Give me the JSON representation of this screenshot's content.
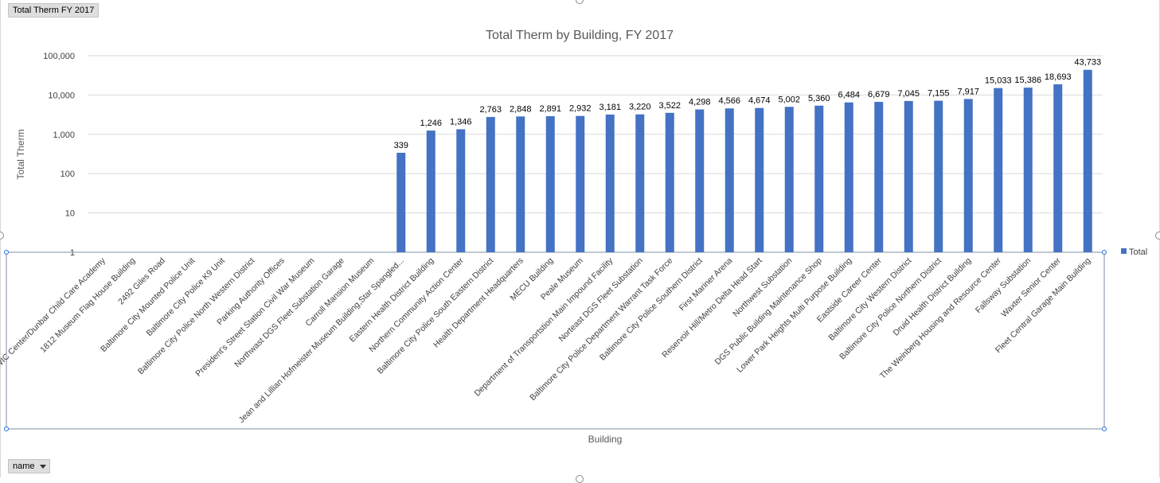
{
  "pivot": {
    "filter_field": "Total Therm FY 2017",
    "axis_field": "name"
  },
  "colors": {
    "bar": "#4472c4",
    "grid": "#d9d9d9",
    "text": "#404040"
  },
  "chart_data": {
    "type": "bar",
    "title": "Total Therm by Building, FY 2017",
    "xlabel": "Building",
    "ylabel": "Total Therm",
    "yscale": "log",
    "ylim": [
      1,
      100000
    ],
    "yticks": [
      1,
      10,
      100,
      1000,
      10000,
      100000
    ],
    "ytick_labels": [
      "1",
      "10",
      "100",
      "1,000",
      "10,000",
      "100,000"
    ],
    "legend": "right",
    "grid": true,
    "categories": [
      "WIC Center/Dunbar Child Care Academy",
      "1812 Museum Flag House Building",
      "2492 Giles Road",
      "Baltimore City Mounted Police Unit",
      "Baltimore City Police K9 Unit",
      "Baltimore City Police North Western District",
      "Parking Authority Offices",
      "President's Street Station Civil War Museum",
      "Northwast DGS Fleet Substation Garage",
      "Carroll Mansion Museum",
      "Jean and Lillian Hofmeister Museum Building,Star Spangled...",
      "Eastern Health District Building",
      "Northern Community Action Center",
      "Baltimore City Police South Eastern District",
      "Health Department Headquarters",
      "MECU Building",
      "Peale Museum",
      "Department of Transportstion Main Impound Facility",
      "Norteast DGS Fleet Substation",
      "Baltimore City Police Department Warrant Task Force",
      "Baltimore City Police Southern District",
      "First Mariner Arena",
      "Reservoir Hill/Metro Delta Head Start",
      "Northwest Substation",
      "DGS Public Building Maintenance Shop",
      "Lower Park Heights Multi Purpose Building",
      "Eastside Career Center",
      "Baltimore City Western District",
      "Baltimore City Police Northern District",
      "Druid Health District Building",
      "The Weinberg Housing and Resource Center",
      "Fallsway Substation",
      "Waxter Senior Center",
      "Fleet Central Garage Main Building"
    ],
    "series": [
      {
        "name": "Total",
        "values": [
          null,
          null,
          null,
          null,
          null,
          null,
          null,
          null,
          null,
          null,
          339,
          1246,
          1346,
          2763,
          2848,
          2891,
          2932,
          3181,
          3220,
          3522,
          4298,
          4566,
          4674,
          5002,
          5360,
          6484,
          6679,
          7045,
          7155,
          7917,
          15033,
          15386,
          18693,
          43733
        ],
        "labels": [
          "",
          "",
          "",
          "",
          "",
          "",
          "",
          "",
          "",
          "",
          "339",
          "1,246",
          "1,346",
          "2,763",
          "2,848",
          "2,891",
          "2,932",
          "3,181",
          "3,220",
          "3,522",
          "4,298",
          "4,566",
          "4,674",
          "5,002",
          "5,360",
          "6,484",
          "6,679",
          "7,045",
          "7,155",
          "7,917",
          "15,033",
          "15,386",
          "18,693",
          "43,733"
        ]
      }
    ]
  }
}
